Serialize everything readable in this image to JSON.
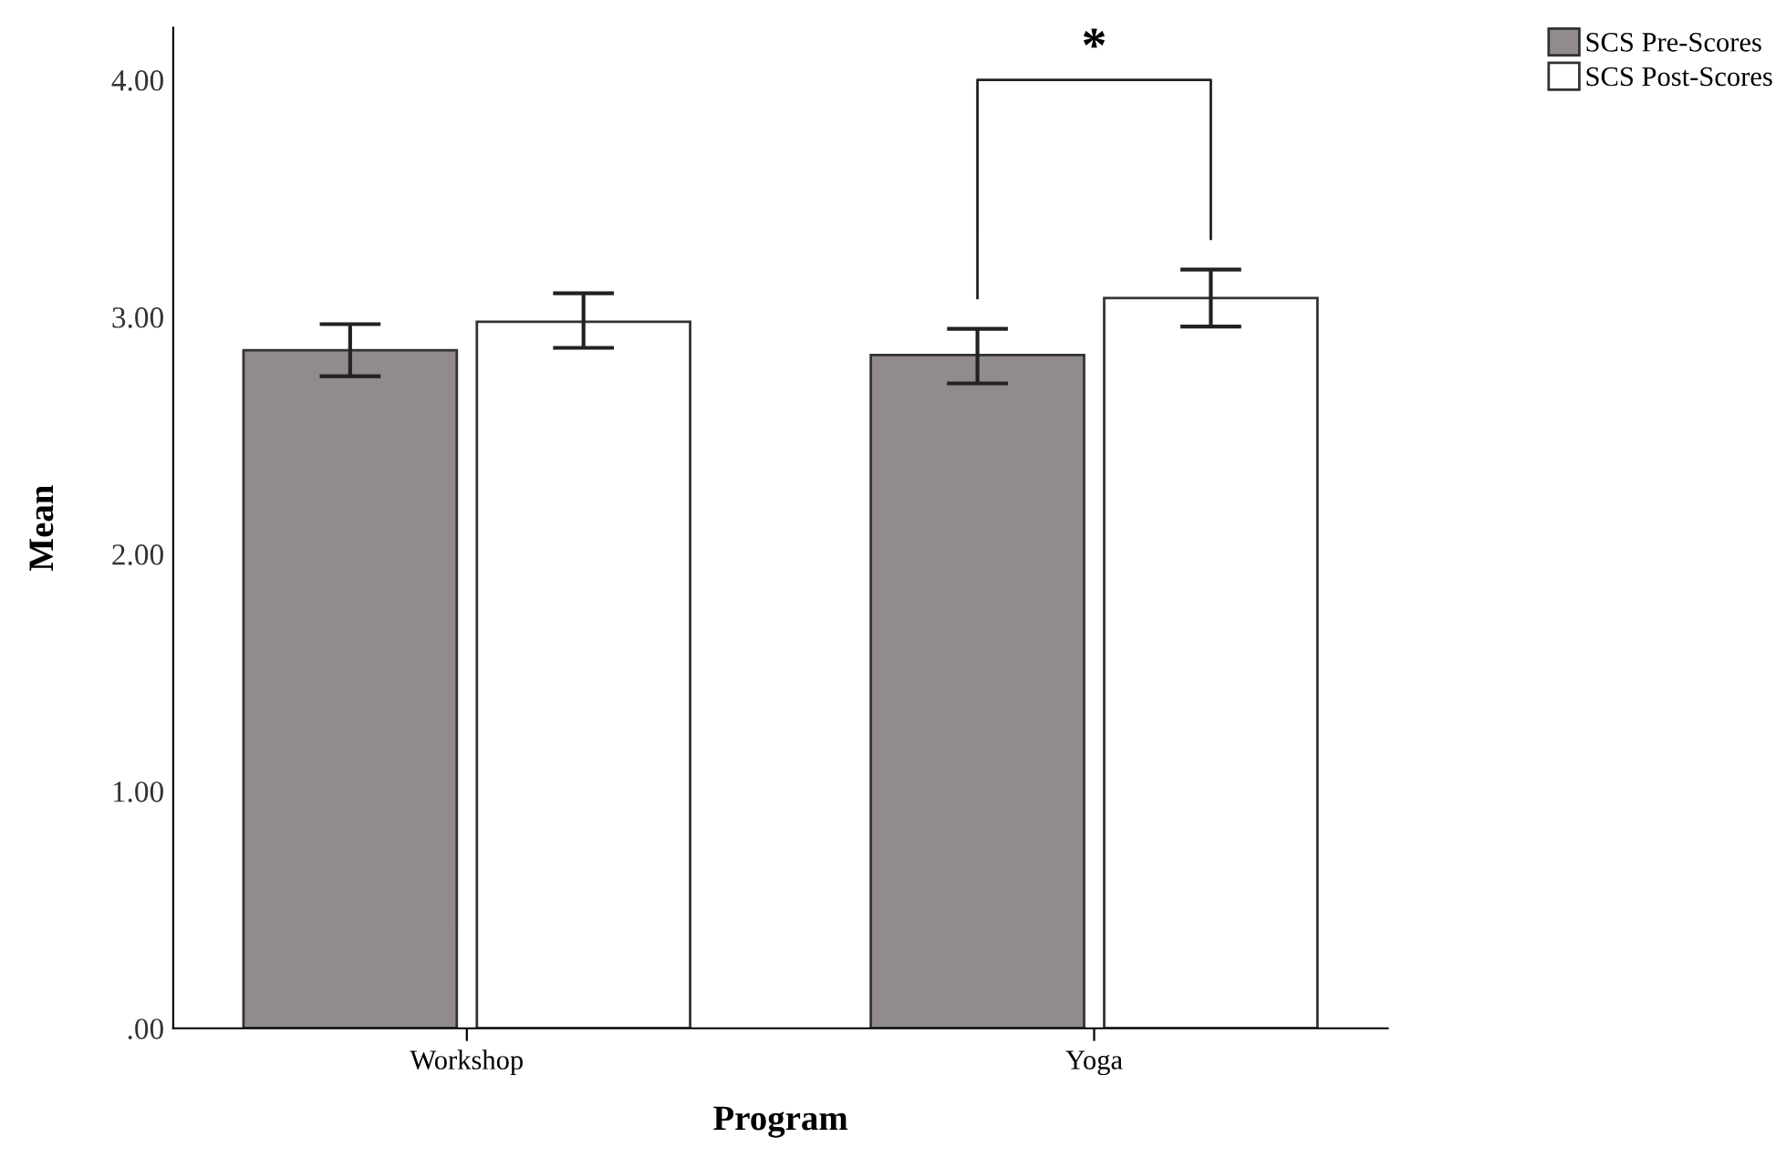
{
  "chart_data": {
    "type": "bar",
    "xlabel": "Program",
    "ylabel": "Mean",
    "categories": [
      "Workshop",
      "Yoga"
    ],
    "series": [
      {
        "name": "SCS Pre-Scores",
        "color": "#918b8b",
        "values": [
          2.86,
          2.84
        ],
        "errors": [
          [
            2.75,
            2.97
          ],
          [
            2.72,
            2.95
          ]
        ]
      },
      {
        "name": "SCS Post-Scores",
        "color": "#ffffff",
        "values": [
          2.98,
          3.08
        ],
        "errors": [
          [
            2.87,
            3.1
          ],
          [
            2.96,
            3.2
          ]
        ]
      }
    ],
    "ylim": [
      0,
      4.22
    ],
    "yticks": [
      {
        "value": 0,
        "label": ".00"
      },
      {
        "value": 1,
        "label": "1.00"
      },
      {
        "value": 2,
        "label": "2.00"
      },
      {
        "value": 3,
        "label": "3.00"
      },
      {
        "value": 4,
        "label": "4.00"
      }
    ],
    "grid": false,
    "legend": "top right",
    "annotations": [
      "*"
    ]
  }
}
